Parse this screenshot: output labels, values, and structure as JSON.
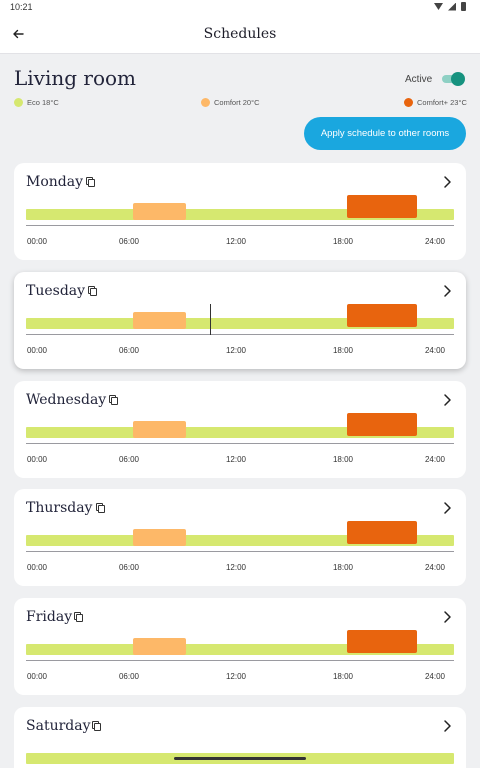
{
  "status_bar": {
    "time": "10:21"
  },
  "app_bar": {
    "title": "Schedules",
    "back_icon": "arrow-left-icon"
  },
  "room": {
    "name": "Living room",
    "active_label": "Active",
    "active": true
  },
  "legend": [
    {
      "label": "Eco 18°C",
      "color": "#d6e870"
    },
    {
      "label": "Comfort 20°C",
      "color": "#fdb868"
    },
    {
      "label": "Comfort+ 23°C",
      "color": "#e8640e"
    }
  ],
  "apply_button_label": "Apply schedule to other rooms",
  "colors": {
    "eco": "#d6e870",
    "comfort": "#fdb868",
    "comfort_plus": "#e8640e",
    "accent": "#1aa7df",
    "toggle": "#16927f"
  },
  "tick_labels": [
    "00:00",
    "06:00",
    "12:00",
    "18:00",
    "24:00"
  ],
  "days": [
    {
      "name": "Monday"
    },
    {
      "name": "Tuesday"
    },
    {
      "name": "Wednesday"
    },
    {
      "name": "Thursday"
    },
    {
      "name": "Friday"
    },
    {
      "name": "Saturday"
    }
  ]
}
